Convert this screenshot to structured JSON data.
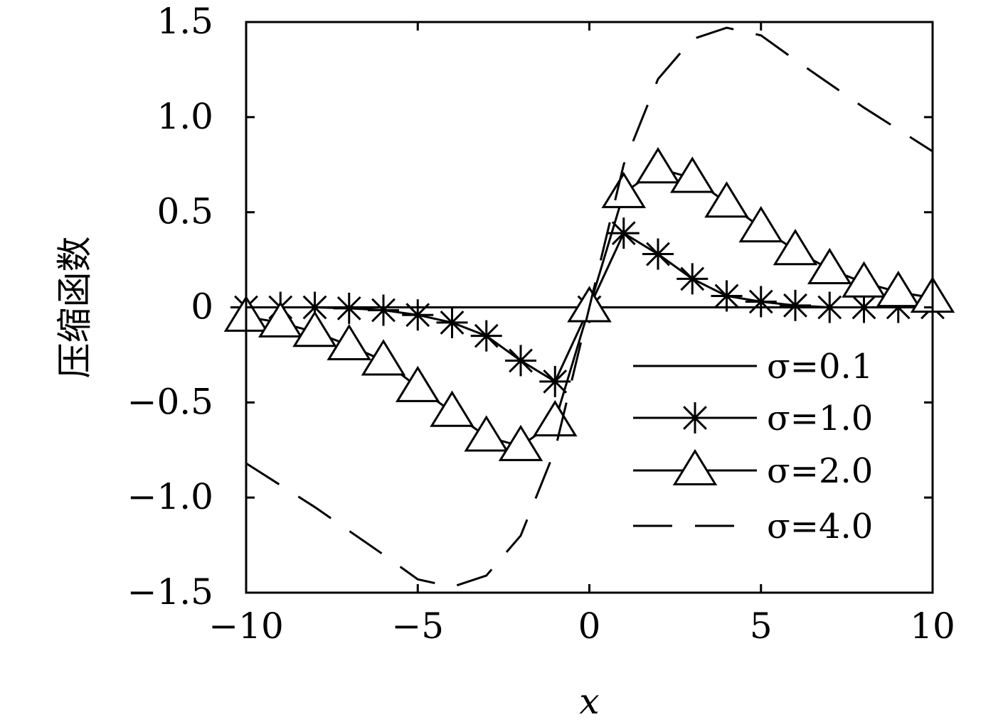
{
  "chart_data": {
    "type": "line",
    "xlabel": "x",
    "ylabel": "压缩函数",
    "xlim": [
      -10,
      10
    ],
    "ylim": [
      -1.5,
      1.5
    ],
    "xticks": [
      -10,
      -5,
      0,
      5,
      10
    ],
    "xtick_labels": [
      "−10",
      "−5",
      "0",
      "5",
      "10"
    ],
    "yticks": [
      1.5,
      1.0,
      0.5,
      0,
      -0.5,
      -1.0,
      -1.5
    ],
    "ytick_labels": [
      "1.5",
      "1.0",
      "0.5",
      "0",
      "−0.5",
      "−1.0",
      "−1.5"
    ],
    "grid": false,
    "legend_position": "bottom-right",
    "series": [
      {
        "name": "σ=0.1",
        "style": "solid",
        "marker": "none",
        "x": [
          -10,
          0,
          10
        ],
        "y": [
          0,
          0,
          0
        ]
      },
      {
        "name": "σ=1.0",
        "style": "solid",
        "marker": "asterisk",
        "x": [
          -10,
          -9,
          -8,
          -7,
          -6,
          -5,
          -4,
          -3,
          -2,
          -1,
          0,
          1,
          2,
          3,
          4,
          5,
          6,
          7,
          8,
          9,
          10
        ],
        "y": [
          0,
          0,
          0,
          -0.005,
          -0.015,
          -0.04,
          -0.08,
          -0.15,
          -0.28,
          -0.39,
          0,
          0.39,
          0.28,
          0.15,
          0.06,
          0.03,
          0.01,
          0,
          0,
          0,
          0
        ]
      },
      {
        "name": "σ=2.0",
        "style": "solid",
        "marker": "triangle",
        "x": [
          -10,
          -9,
          -8,
          -7,
          -6,
          -5,
          -4,
          -3,
          -2,
          -1,
          0,
          1,
          2,
          3,
          4,
          5,
          6,
          7,
          8,
          9,
          10
        ],
        "y": [
          -0.05,
          -0.08,
          -0.13,
          -0.2,
          -0.28,
          -0.42,
          -0.55,
          -0.68,
          -0.73,
          -0.6,
          0,
          0.6,
          0.73,
          0.68,
          0.55,
          0.42,
          0.3,
          0.2,
          0.13,
          0.08,
          0.05
        ]
      },
      {
        "name": "σ=4.0",
        "style": "dashed",
        "marker": "none",
        "x": [
          -10,
          -8,
          -6,
          -5,
          -4,
          -3,
          -2,
          -1,
          0,
          1,
          2,
          3,
          4,
          5,
          6,
          8,
          10
        ],
        "y": [
          -0.82,
          -1.05,
          -1.3,
          -1.43,
          -1.47,
          -1.41,
          -1.2,
          -0.75,
          0,
          0.75,
          1.2,
          1.41,
          1.47,
          1.43,
          1.3,
          1.05,
          0.82
        ]
      }
    ]
  }
}
